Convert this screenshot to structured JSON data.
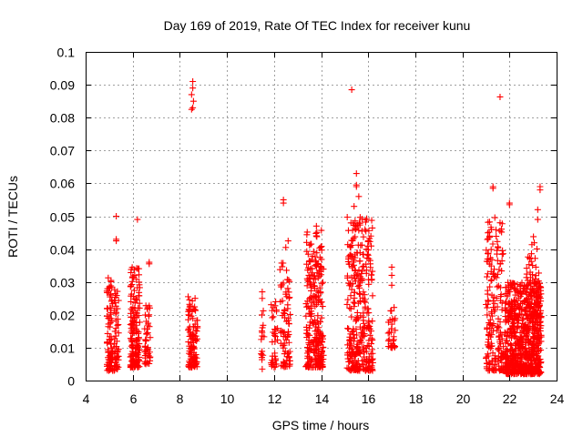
{
  "chart_data": {
    "type": "scatter",
    "title": "Day 169 of 2019, Rate Of TEC Index for receiver kunu",
    "xlabel": "GPS time / hours",
    "ylabel": "ROTI / TECUs",
    "xlim": [
      4,
      24
    ],
    "ylim": [
      0,
      0.1
    ],
    "xticks": [
      4,
      6,
      8,
      10,
      12,
      14,
      16,
      18,
      20,
      22,
      24
    ],
    "yticks": [
      0,
      0.01,
      0.02,
      0.03,
      0.04,
      0.05,
      0.06,
      0.07,
      0.08,
      0.09,
      0.1
    ],
    "ytick_labels": [
      "0",
      "0.01",
      "0.02",
      "0.03",
      "0.04",
      "0.05",
      "0.06",
      "0.07",
      "0.08",
      "0.09",
      "0.1"
    ],
    "grid": true,
    "marker": "+",
    "color": "#ff0000",
    "series": [
      {
        "name": "ROTI",
        "outliers": [
          {
            "x": 8.55,
            "y": 0.091
          },
          {
            "x": 8.55,
            "y": 0.089
          },
          {
            "x": 8.5,
            "y": 0.087
          },
          {
            "x": 8.58,
            "y": 0.085
          },
          {
            "x": 8.55,
            "y": 0.083
          },
          {
            "x": 8.5,
            "y": 0.0825
          },
          {
            "x": 15.3,
            "y": 0.0885
          },
          {
            "x": 21.6,
            "y": 0.0863
          },
          {
            "x": 5.3,
            "y": 0.05
          },
          {
            "x": 5.3,
            "y": 0.043
          },
          {
            "x": 5.3,
            "y": 0.0425
          },
          {
            "x": 6.2,
            "y": 0.049
          },
          {
            "x": 6.7,
            "y": 0.036
          },
          {
            "x": 6.7,
            "y": 0.0355
          },
          {
            "x": 12.4,
            "y": 0.055
          },
          {
            "x": 12.4,
            "y": 0.054
          },
          {
            "x": 12.6,
            "y": 0.0425
          },
          {
            "x": 12.5,
            "y": 0.0405
          },
          {
            "x": 15.5,
            "y": 0.063
          },
          {
            "x": 15.5,
            "y": 0.0595
          },
          {
            "x": 15.5,
            "y": 0.059
          },
          {
            "x": 15.6,
            "y": 0.056
          },
          {
            "x": 15.4,
            "y": 0.053
          },
          {
            "x": 13.8,
            "y": 0.047
          },
          {
            "x": 13.8,
            "y": 0.044
          },
          {
            "x": 17.0,
            "y": 0.0345
          },
          {
            "x": 17.0,
            "y": 0.032
          },
          {
            "x": 17.0,
            "y": 0.029
          },
          {
            "x": 11.5,
            "y": 0.027
          },
          {
            "x": 11.5,
            "y": 0.025
          },
          {
            "x": 11.5,
            "y": 0.0035
          },
          {
            "x": 21.3,
            "y": 0.059
          },
          {
            "x": 21.3,
            "y": 0.0585
          },
          {
            "x": 21.6,
            "y": 0.048
          },
          {
            "x": 22.0,
            "y": 0.054
          },
          {
            "x": 22.0,
            "y": 0.0535
          },
          {
            "x": 23.3,
            "y": 0.059
          },
          {
            "x": 23.3,
            "y": 0.058
          },
          {
            "x": 23.2,
            "y": 0.052
          },
          {
            "x": 23.2,
            "y": 0.049
          }
        ],
        "clusters": [
          {
            "x_range": [
              4.9,
              5.15
            ],
            "y_range": [
              0.003,
              0.032
            ],
            "n": 90,
            "seed": 11
          },
          {
            "x_range": [
              5.2,
              5.4
            ],
            "y_range": [
              0.003,
              0.028
            ],
            "n": 55,
            "seed": 12
          },
          {
            "x_range": [
              5.9,
              6.3
            ],
            "y_range": [
              0.004,
              0.035
            ],
            "n": 160,
            "seed": 13
          },
          {
            "x_range": [
              6.5,
              6.75
            ],
            "y_range": [
              0.005,
              0.023
            ],
            "n": 45,
            "seed": 14
          },
          {
            "x_range": [
              8.35,
              8.75
            ],
            "y_range": [
              0.004,
              0.026
            ],
            "n": 110,
            "seed": 15
          },
          {
            "x_range": [
              11.45,
              11.6
            ],
            "y_range": [
              0.006,
              0.022
            ],
            "n": 15,
            "seed": 16
          },
          {
            "x_range": [
              11.85,
              12.15
            ],
            "y_range": [
              0.004,
              0.025
            ],
            "n": 35,
            "seed": 17
          },
          {
            "x_range": [
              12.25,
              12.7
            ],
            "y_range": [
              0.004,
              0.036
            ],
            "n": 80,
            "seed": 18
          },
          {
            "x_range": [
              13.35,
              14.1
            ],
            "y_range": [
              0.004,
              0.046
            ],
            "n": 260,
            "seed": 19
          },
          {
            "x_range": [
              15.1,
              16.2
            ],
            "y_range": [
              0.003,
              0.05
            ],
            "n": 330,
            "seed": 20
          },
          {
            "x_range": [
              16.85,
              17.15
            ],
            "y_range": [
              0.01,
              0.023
            ],
            "n": 30,
            "seed": 21
          },
          {
            "x_range": [
              21.0,
              21.75
            ],
            "y_range": [
              0.003,
              0.05
            ],
            "n": 180,
            "seed": 22
          },
          {
            "x_range": [
              21.8,
              23.35
            ],
            "y_range": [
              0.002,
              0.03
            ],
            "n": 700,
            "seed": 23
          },
          {
            "x_range": [
              22.7,
              23.3
            ],
            "y_range": [
              0.02,
              0.045
            ],
            "n": 60,
            "seed": 24
          }
        ]
      }
    ]
  }
}
